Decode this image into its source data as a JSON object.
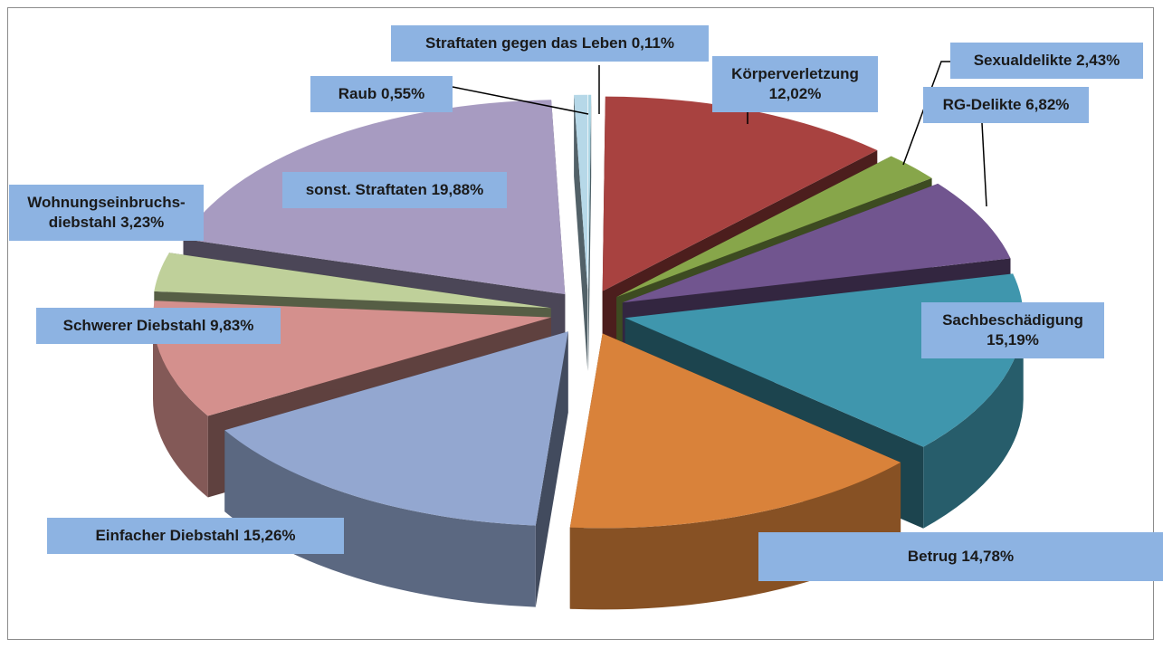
{
  "chart_data": {
    "type": "pie3d",
    "categories": [
      "Straftaten gegen das Leben",
      "Körperverletzung",
      "Sexualdelikte",
      "RG-Delikte",
      "Sachbeschädigung",
      "Betrug",
      "Einfacher Diebstahl",
      "Schwerer Diebstahl",
      "Wohnungseinbruchs-diebstahl",
      "sonst. Straftaten",
      "Raub"
    ],
    "values": [
      0.11,
      12.02,
      2.43,
      6.82,
      15.19,
      14.78,
      15.26,
      9.83,
      3.23,
      19.88,
      0.55
    ],
    "value_labels": [
      "0,11%",
      "12,02%",
      "2,43%",
      "6,82%",
      "15,19%",
      "14,78%",
      "15,26%",
      "9,83%",
      "3,23%",
      "19,88%",
      "0,55%"
    ],
    "colors": [
      "#a8d3e2",
      "#a84240",
      "#87a64a",
      "#71558f",
      "#3f96ad",
      "#d9823a",
      "#93a7d0",
      "#d4908d",
      "#bfd09a",
      "#a79bc1",
      "#b6d8e8"
    ]
  }
}
